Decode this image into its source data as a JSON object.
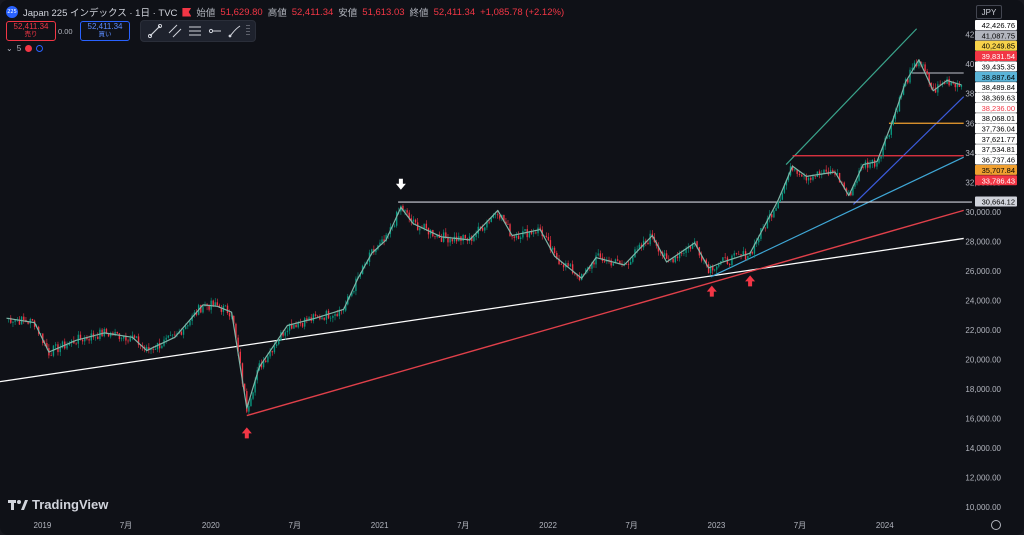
{
  "header": {
    "title": "Japan 225 インデックス · 1日 · TVC",
    "logo_text": "225",
    "ohlc": [
      {
        "label": "始値",
        "value": "51,629.80"
      },
      {
        "label": "高値",
        "value": "52,411.34"
      },
      {
        "label": "安値",
        "value": "51,613.03"
      },
      {
        "label": "終値",
        "value": "52,411.34"
      }
    ],
    "change": "+1,085.78 (+2.12%)"
  },
  "trade": {
    "sell_price": "52,411.34",
    "sell_label": "売り",
    "spread": "0.00",
    "buy_price": "52,411.34",
    "buy_label": "買い"
  },
  "indicator": {
    "value": "5"
  },
  "currency": "JPY",
  "brand": "TradingView",
  "toolbar": {
    "icons": [
      "trend-line-icon",
      "parallel-channel-icon",
      "fib-retracement-icon",
      "horizontal-ray-icon",
      "brush-icon",
      "drag-handle-icon"
    ]
  },
  "colors": {
    "up": "#089981",
    "down": "#f23645",
    "background": "#0f1117",
    "sma": "#7fb5a7"
  },
  "chart_data": {
    "type": "line",
    "title": "",
    "y_scale": "linear",
    "ylim": [
      9400,
      43400
    ],
    "y_ticks": [
      "42,000.00",
      "40,000.00",
      "38,000.00",
      "36,000.00",
      "34,000.00",
      "32,000.00",
      "30,000.00",
      "28,000.00",
      "26,000.00",
      "24,000.00",
      "22,000.00",
      "20,000.00",
      "18,000.00",
      "16,000.00",
      "14,000.00",
      "12,000.00",
      "10,000.00"
    ],
    "x_ticks": [
      "2019",
      "7月",
      "2020",
      "7月",
      "2021",
      "7月",
      "2022",
      "7月",
      "2023",
      "7月",
      "2024"
    ],
    "grid": false,
    "series": [
      {
        "points": [
          [
            "2018-10",
            22800
          ],
          [
            "2018-12",
            22500
          ],
          [
            "2019-01",
            20500
          ],
          [
            "2019-03",
            21300
          ],
          [
            "2019-05",
            21800
          ],
          [
            "2019-07",
            21500
          ],
          [
            "2019-08",
            20600
          ],
          [
            "2019-10",
            21500
          ],
          [
            "2019-12",
            23700
          ],
          [
            "2020-01",
            23600
          ],
          [
            "2020-02",
            23200
          ],
          [
            "2020-03-19",
            16700
          ],
          [
            "2020-04",
            19500
          ],
          [
            "2020-06",
            22300
          ],
          [
            "2020-08",
            22800
          ],
          [
            "2020-10",
            23400
          ],
          [
            "2020-11",
            25500
          ],
          [
            "2020-12",
            27200
          ],
          [
            "2021-01",
            28100
          ],
          [
            "2021-02-16",
            30300
          ],
          [
            "2021-03",
            29200
          ],
          [
            "2021-05",
            28300
          ],
          [
            "2021-07",
            28100
          ],
          [
            "2021-09-14",
            30100
          ],
          [
            "2021-10",
            28400
          ],
          [
            "2021-12",
            28800
          ],
          [
            "2022-01",
            27000
          ],
          [
            "2022-03",
            25500
          ],
          [
            "2022-04",
            26900
          ],
          [
            "2022-06",
            26400
          ],
          [
            "2022-08",
            28400
          ],
          [
            "2022-09",
            26600
          ],
          [
            "2022-11",
            27900
          ],
          [
            "2022-12",
            26200
          ],
          [
            "2023-01",
            26600
          ],
          [
            "2023-03",
            27200
          ],
          [
            "2023-05",
            30800
          ],
          [
            "2023-06",
            33100
          ],
          [
            "2023-07",
            32400
          ],
          [
            "2023-09",
            32700
          ],
          [
            "2023-10",
            31100
          ],
          [
            "2023-11",
            33200
          ],
          [
            "2023-12",
            33400
          ],
          [
            "2024-01",
            35900
          ],
          [
            "2024-02",
            38800
          ],
          [
            "2024-03",
            40300
          ],
          [
            "2024-04",
            38200
          ],
          [
            "2024-05",
            38900
          ],
          [
            "2024-06",
            38600
          ]
        ]
      }
    ],
    "horizontal_levels": [
      30664.12
    ],
    "price_tags": [
      {
        "text": "42,426.76",
        "bg": "#ffffff",
        "fg": "#000000"
      },
      {
        "text": "41,087.75",
        "bg": "#b2b5be",
        "fg": "#000000"
      },
      {
        "text": "40,249.85",
        "bg": "#f7d24a",
        "fg": "#000000"
      },
      {
        "text": "39,831.54",
        "bg": "#f23645",
        "fg": "#ffffff"
      },
      {
        "text": "39,435.35",
        "bg": "#ffffff",
        "fg": "#000000"
      },
      {
        "text": "38,887.64",
        "bg": "#5ab4d8",
        "fg": "#000000"
      },
      {
        "text": "38,489.84",
        "bg": "#ffffff",
        "fg": "#000000"
      },
      {
        "text": "38,369.63",
        "bg": "#ffffff",
        "fg": "#000000"
      },
      {
        "text": "38,236.00",
        "bg": "#ffffff",
        "fg": "#f23645"
      },
      {
        "text": "38,068.01",
        "bg": "#ffffff",
        "fg": "#000000"
      },
      {
        "text": "37,736.04",
        "bg": "#ffffff",
        "fg": "#000000"
      },
      {
        "text": "37,621.77",
        "bg": "#ffffff",
        "fg": "#000000"
      },
      {
        "text": "37,534.81",
        "bg": "#ffffff",
        "fg": "#000000"
      },
      {
        "text": "36,737.46",
        "bg": "#ffffff",
        "fg": "#000000"
      },
      {
        "text": "35,707.84",
        "bg": "#f0a030",
        "fg": "#000000"
      },
      {
        "text": "33,786.43",
        "bg": "#f23645",
        "fg": "#ffffff"
      },
      {
        "text": "30,664.12",
        "bg": "#d1d4dc",
        "fg": "#000000",
        "level": true
      }
    ]
  }
}
